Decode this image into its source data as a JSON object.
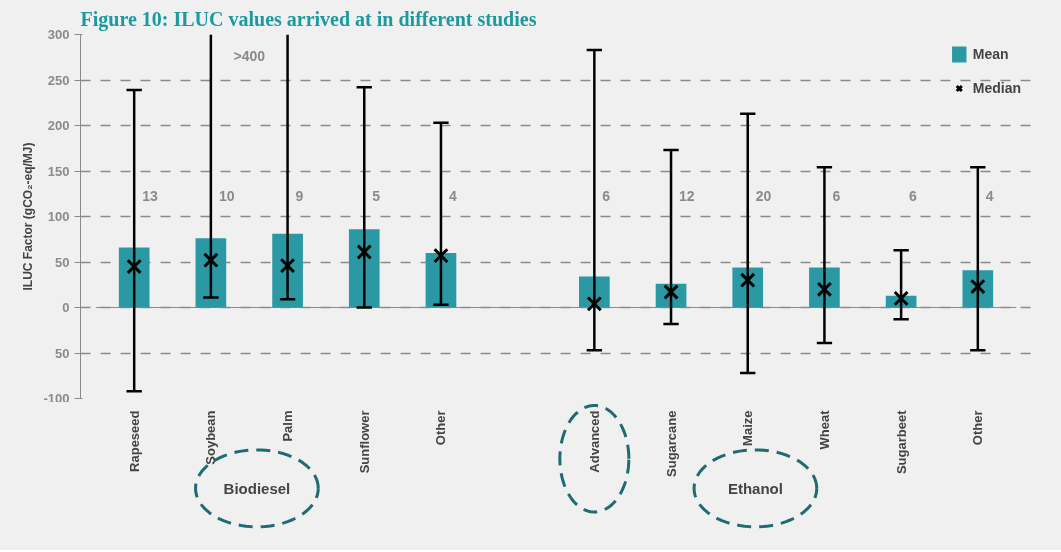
{
  "chart_data": {
    "type": "bar",
    "title": "Figure 10: ILUC values arrived at in different studies",
    "ylabel": "ILUC Factor (gCO₂-eq/MJ)",
    "categories": [
      "Rapeseed",
      "Soybean",
      "Palm",
      "Sunflower",
      "Other",
      null,
      "Advanced",
      "Sugarcane",
      "Maize",
      "Wheat",
      "Sugarbeet",
      "Other"
    ],
    "series": [
      {
        "name": "Mean",
        "color": "#2a99a4",
        "values": [
          66,
          76,
          81,
          86,
          60,
          null,
          34,
          26,
          44,
          44,
          13,
          41
        ]
      },
      {
        "name": "Median",
        "type": "scatter",
        "color": "#000000",
        "marker": "cross",
        "values": [
          45,
          52,
          46,
          61,
          57,
          null,
          4,
          17,
          30,
          20,
          10,
          23
        ],
        "errors": [
          [
            -92,
            239
          ],
          [
            11,
            300
          ],
          [
            9,
            300
          ],
          [
            0,
            242
          ],
          [
            3,
            203
          ],
          null,
          [
            -47,
            283
          ],
          [
            -18,
            173
          ],
          [
            -72,
            213
          ],
          [
            -39,
            154
          ],
          [
            -13,
            63
          ],
          [
            -47,
            154
          ]
        ]
      }
    ],
    "ylim": [
      -100,
      300
    ],
    "yticks": [
      {
        "value": -100,
        "label": "-100"
      },
      {
        "value": -50,
        "label": "50"
      },
      0,
      50,
      100,
      150,
      200,
      250,
      300
    ],
    "grid": "y",
    "legend": "top right",
    "annotations": [
      "13",
      "10",
      "9",
      "5",
      "4",
      "6",
      "12",
      "20",
      "6",
      "6",
      "4",
      ">400",
      "Biodiesel",
      "Ethanol"
    ]
  }
}
